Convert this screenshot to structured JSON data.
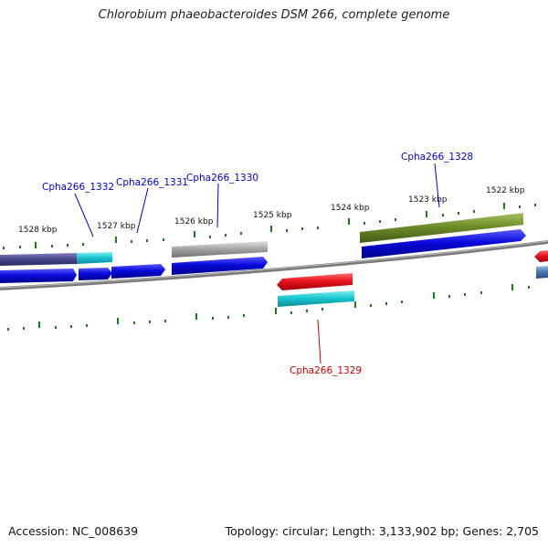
{
  "title": "Chlorobium phaeobacteroides DSM 266, complete genome",
  "footer": {
    "accession": "Accession: NC_008639",
    "topology": "Topology: circular; Length: 3,133,902 bp; Genes: 2,705"
  },
  "ticks": [
    "1528 kbp",
    "1527 kbp",
    "1526 kbp",
    "1525 kbp",
    "1524 kbp",
    "1523 kbp",
    "1522 kbp"
  ],
  "gene_labels": [
    {
      "text": "Cpha266_1332",
      "color": "#0000cc"
    },
    {
      "text": "Cpha266_1331",
      "color": "#0000cc"
    },
    {
      "text": "Cpha266_1330",
      "color": "#0000cc"
    },
    {
      "text": "Cpha266_1328",
      "color": "#0000cc"
    },
    {
      "text": "Cpha266_1329",
      "color": "#cc0000"
    }
  ],
  "colors": {
    "forward_cds": "#0a0adc",
    "reverse_cds": "#e8141e",
    "rna_cyan": "#19c8d2",
    "slate": "#4a4a90",
    "olive": "#6e8c28",
    "gray": "#a8a8a8",
    "tick": "#1a7a1a",
    "backbone": "#7a7a7a"
  }
}
